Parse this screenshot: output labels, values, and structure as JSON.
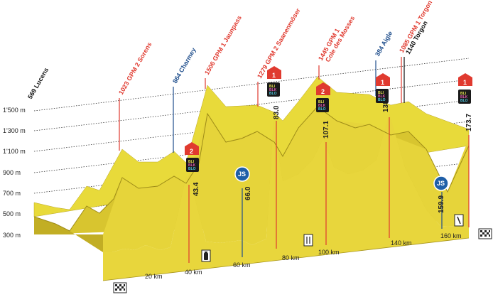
{
  "altitude_labels": [
    "1'500 m",
    "1'300 m",
    "1'100 m",
    "900 m",
    "700 m",
    "500 m",
    "300 m"
  ],
  "km_labels": [
    "20 km",
    "40 km",
    "60 km",
    "80 km",
    "100 km",
    "140 km",
    "160 km"
  ],
  "start": {
    "label": "569 Lucens"
  },
  "waypoints": [
    {
      "label": "1023 GPM 2 Sorens",
      "color": "#e03a2f"
    },
    {
      "label": "864 Charmey",
      "color": "#1f4e8c"
    },
    {
      "label": "1506 GPM 1 Jaunpass",
      "color": "#e03a2f"
    },
    {
      "label": "1279 GPM 2 Saanenmöser",
      "color": "#e03a2f"
    },
    {
      "label": "1445 GPM 1",
      "color": "#e03a2f"
    },
    {
      "label": "Cole des Mosses",
      "color": "#e03a2f"
    },
    {
      "label": "384 Aigle",
      "color": "#1f4e8c"
    },
    {
      "label": "1085 GPM 1 Torgon",
      "color": "#e03a2f"
    },
    {
      "label": "1140 Torgon",
      "color": "#111111"
    }
  ],
  "km_marks": [
    "43.4",
    "66.0",
    "83.0",
    "107.1",
    "138.2",
    "159.9",
    "173.7"
  ],
  "badges": [
    "2",
    "1",
    "2",
    "1",
    "1"
  ],
  "js_badges": [
    "JS",
    "JS"
  ],
  "sprint_tags": [
    "BLI",
    "BLK",
    "BLO"
  ],
  "colors": {
    "terrain_top": "#e8da3a",
    "terrain_side": "#c9b62a",
    "terrain_dark": "#a8951c",
    "gpm": "#e03a2f",
    "town": "#1f4e8c"
  }
}
